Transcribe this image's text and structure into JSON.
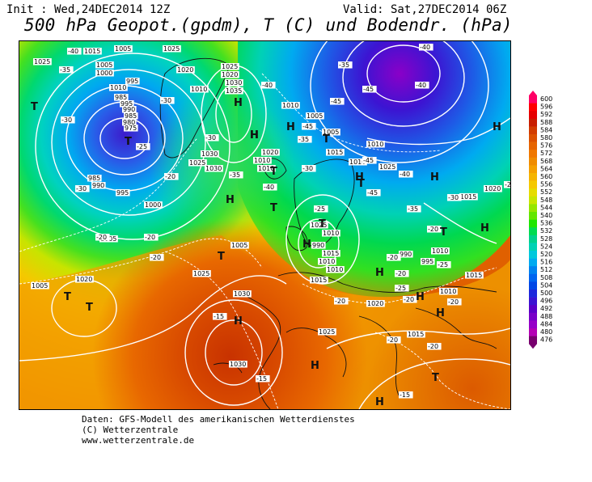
{
  "header": {
    "init": "Init : Wed,24DEC2014 12Z",
    "valid": "Valid: Sat,27DEC2014 06Z",
    "title": "500 hPa Geopot.(gpdm), T (C) und Bodendr. (hPa)"
  },
  "footer": {
    "line1": "Daten: GFS-Modell des amerikanischen Wetterdienstes",
    "line2": "(C) Wetterzentrale",
    "line3": "www.wetterzentrale.de"
  },
  "legend": {
    "values": [
      "600",
      "596",
      "592",
      "588",
      "584",
      "580",
      "576",
      "572",
      "568",
      "564",
      "560",
      "556",
      "552",
      "548",
      "544",
      "540",
      "536",
      "532",
      "528",
      "524",
      "520",
      "516",
      "512",
      "508",
      "504",
      "500",
      "496",
      "492",
      "488",
      "484",
      "480",
      "476"
    ],
    "colors": [
      "#ff0066",
      "#ff0000",
      "#e60000",
      "#c81e00",
      "#d23c00",
      "#dc5000",
      "#e66400",
      "#f07800",
      "#f08c00",
      "#f5a000",
      "#f5b400",
      "#f5c800",
      "#e6dc00",
      "#c8e600",
      "#96e600",
      "#64e600",
      "#1ee600",
      "#00dc50",
      "#00d28c",
      "#00d2b4",
      "#00c8dc",
      "#00aaf0",
      "#0082f0",
      "#0064f0",
      "#0046e6",
      "#1e28dc",
      "#3c14d2",
      "#5a00c8",
      "#7800c8",
      "#9600c8",
      "#b400b4",
      "#78006e"
    ]
  },
  "map": {
    "pressure_labels": [
      "1025",
      "1015",
      "1005",
      "1025",
      "1020",
      "1005",
      "1000",
      "995",
      "1010",
      "985",
      "995",
      "990",
      "985",
      "980",
      "975",
      "1025",
      "1020",
      "1030",
      "1035",
      "1010",
      "1010",
      "1005",
      "1005",
      "1010",
      "1030",
      "1025",
      "1030",
      "1010",
      "1020",
      "1010",
      "1015",
      "1010",
      "1025",
      "1020",
      "1015",
      "985",
      "990",
      "995",
      "1005",
      "1000",
      "990",
      "1015",
      "1010",
      "1025",
      "1010",
      "1010",
      "1005",
      "1020",
      "1005",
      "1030",
      "1025",
      "1015",
      "1020",
      "1030",
      "1025",
      "1015",
      "1010",
      "990",
      "995",
      "1015",
      "1010"
    ],
    "temp_labels": [
      "-40",
      "-40",
      "-35",
      "-35",
      "-30",
      "-25",
      "-30",
      "-30",
      "-40",
      "-45",
      "-45",
      "-40",
      "-45",
      "-35",
      "-30",
      "-30",
      "-20",
      "-35",
      "-40",
      "-45",
      "-45",
      "-40",
      "-35",
      "-30",
      "-25",
      "-20",
      "-20",
      "-20",
      "-20",
      "-15",
      "-15",
      "-15",
      "-20",
      "-20",
      "-20",
      "-20",
      "-20",
      "-25",
      "-25",
      "-20",
      "-20",
      "-20"
    ],
    "highs": [
      "H",
      "H",
      "H",
      "H",
      "H",
      "H",
      "H",
      "H",
      "H",
      "H",
      "H",
      "H",
      "H",
      "H",
      "H",
      "H"
    ],
    "lows": [
      "T",
      "T",
      "T",
      "T",
      "T",
      "T",
      "T",
      "T",
      "T",
      "T",
      "T",
      "T"
    ]
  }
}
